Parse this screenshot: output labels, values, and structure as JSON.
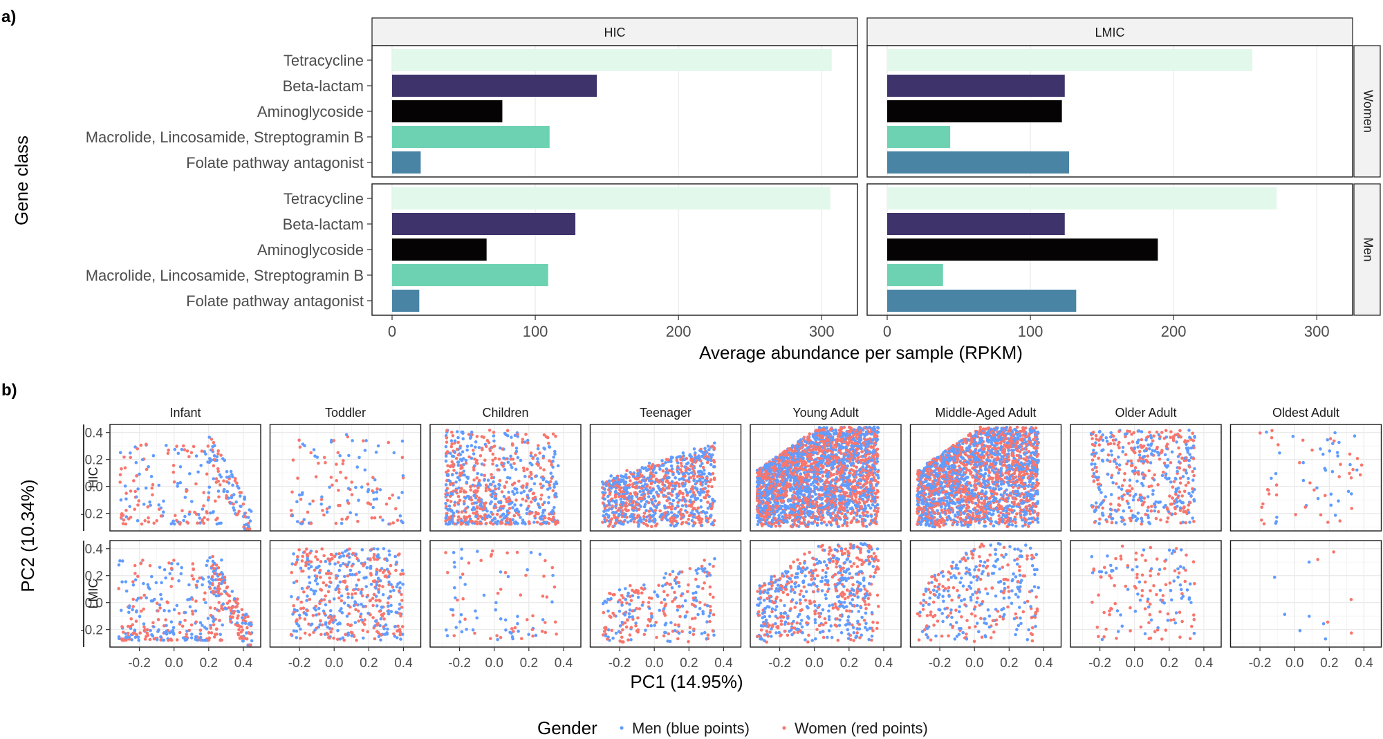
{
  "figure": {
    "panel_a_tag": "a)",
    "panel_b_tag": "b)"
  },
  "colors": {
    "Tetracycline": "#e1f8ea",
    "Beta-lactam": "#3f336b",
    "Aminoglycoside": "#050304",
    "Macrolide, Lincosamide, Streptogramin B": "#6cd2b2",
    "Folate pathway antagonist": "#4a84a5",
    "men": "#619cff",
    "women": "#f8766d"
  },
  "chart_data": [
    {
      "type": "bar",
      "orientation": "horizontal",
      "facet_cols": [
        "HIC",
        "LMIC"
      ],
      "facet_rows": [
        "Women",
        "Men"
      ],
      "categories": [
        "Tetracycline",
        "Beta-lactam",
        "Aminoglycoside",
        "Macrolide, Lincosamide, Streptogramin B",
        "Folate pathway antagonist"
      ],
      "xlabel": "Average abundance per sample (RPKM)",
      "ylabel": "Gene class",
      "xlim": [
        -14,
        325
      ],
      "xticks": [
        0,
        100,
        200,
        300
      ],
      "panels": [
        {
          "col": "HIC",
          "row": "Women",
          "values": [
            307,
            143,
            77,
            110,
            20
          ]
        },
        {
          "col": "LMIC",
          "row": "Women",
          "values": [
            255,
            124,
            122,
            44,
            127
          ]
        },
        {
          "col": "HIC",
          "row": "Men",
          "values": [
            306,
            128,
            66,
            109,
            19
          ]
        },
        {
          "col": "LMIC",
          "row": "Men",
          "values": [
            272,
            124,
            189,
            39,
            132
          ]
        }
      ]
    },
    {
      "type": "scatter",
      "facet_cols": [
        "Infant",
        "Toddler",
        "Children",
        "Teenager",
        "Young Adult",
        "Middle-Aged Adult",
        "Older Adult",
        "Oldest Adult"
      ],
      "facet_rows": [
        "HIC",
        "LMIC"
      ],
      "xlabel": "PC1 (14.95%)",
      "ylabel": "PC2 (10.34%)",
      "xlim": [
        -0.37,
        0.5
      ],
      "ylim": [
        -0.33,
        0.46
      ],
      "xticks": [
        -0.2,
        0.0,
        0.2,
        0.4
      ],
      "xtick_labels": [
        "-0.2",
        "0.0",
        "0.2",
        "0.4"
      ],
      "yticks": [
        0.4,
        0.2,
        0.0,
        -0.2
      ],
      "ytick_labels": [
        "0.4",
        "0.2",
        "0.0",
        "-0.2"
      ],
      "series": [
        {
          "name": "Men (blue points)",
          "color": "#619cff"
        },
        {
          "name": "Women (red points)",
          "color": "#f8766d"
        }
      ],
      "legend_title": "Gender",
      "legend_position": "bottom",
      "point_counts_hic": [
        260,
        130,
        700,
        900,
        2600,
        2200,
        480,
        70
      ],
      "point_counts_lmic": [
        420,
        480,
        90,
        260,
        620,
        340,
        150,
        12
      ]
    }
  ]
}
